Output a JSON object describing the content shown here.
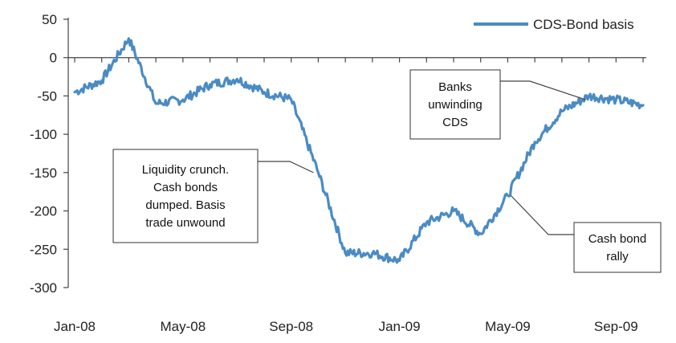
{
  "chart_data": {
    "type": "line",
    "title": "",
    "xlabel": "",
    "ylabel": "",
    "ylim": [
      -300,
      50
    ],
    "yticks": [
      50,
      0,
      -50,
      -100,
      -150,
      -200,
      -250,
      -300
    ],
    "xticks": [
      "Jan-08",
      "May-08",
      "Sep-08",
      "Jan-09",
      "May-09",
      "Sep-09"
    ],
    "xlim": [
      "2008-01",
      "2009-10"
    ],
    "grid": false,
    "legend": "top-right",
    "series": [
      {
        "name": "CDS-Bond basis",
        "color": "#4a8bc4",
        "x": [
          "2008-01",
          "2008-02",
          "2008-03",
          "2008-04",
          "2008-05",
          "2008-06",
          "2008-07",
          "2008-08",
          "2008-09",
          "2008-10",
          "2008-11",
          "2008-12",
          "2009-01",
          "2009-02",
          "2009-03",
          "2009-04",
          "2009-05",
          "2009-06",
          "2009-07",
          "2009-08",
          "2009-09",
          "2009-10"
        ],
        "values": [
          -45,
          -30,
          25,
          -60,
          -55,
          -35,
          -28,
          -45,
          -55,
          -150,
          -255,
          -255,
          -265,
          -215,
          -200,
          -230,
          -180,
          -110,
          -70,
          -50,
          -55,
          -62
        ]
      }
    ],
    "annotations": [
      {
        "lines": [
          "Liquidity crunch.",
          "Cash bonds",
          "dumped. Basis",
          "trade unwound"
        ],
        "x": "2008-10",
        "y": -150
      },
      {
        "lines": [
          "Banks",
          "unwinding",
          "CDS"
        ],
        "x": "2009-08",
        "y": -55
      },
      {
        "lines": [
          "Cash bond",
          "rally"
        ],
        "x": "2009-05",
        "y": -180
      }
    ]
  }
}
